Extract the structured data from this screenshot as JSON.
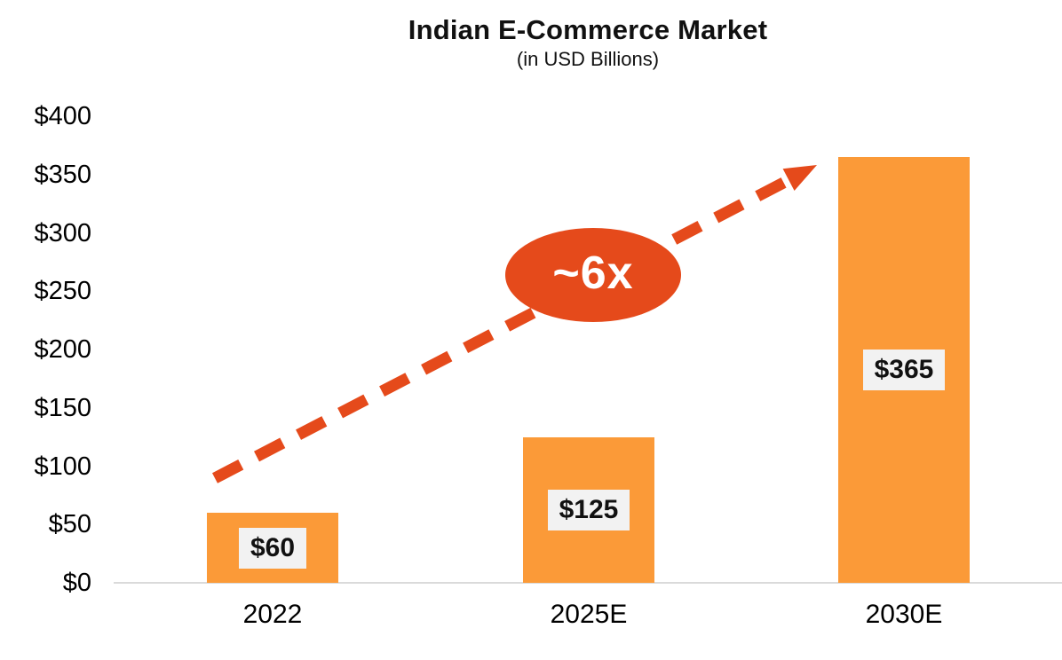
{
  "chart_data": {
    "type": "bar",
    "title": "Indian E-Commerce Market",
    "subtitle": "(in USD Billions)",
    "categories": [
      "2022",
      "2025E",
      "2030E"
    ],
    "values": [
      60,
      125,
      365
    ],
    "value_labels": [
      "$60",
      "$125",
      "$365"
    ],
    "xlabel": "",
    "ylabel": "",
    "ylim": [
      0,
      400
    ],
    "ytick_step": 50,
    "yticks": [
      "$400",
      "$350",
      "$300",
      "$250",
      "$200",
      "$150",
      "$100",
      "$50",
      "$0"
    ],
    "grid": false,
    "legend": false,
    "annotation": {
      "label": "~6x",
      "shape": "ellipse",
      "meaning": "approx 6x growth from 2022 to 2030E"
    },
    "colors": {
      "bar": "#FB9A38",
      "annotation": "#E54A1B",
      "value_label_bg": "#F2F2F2",
      "axis_line": "#DADADA",
      "text": "#111111"
    }
  }
}
